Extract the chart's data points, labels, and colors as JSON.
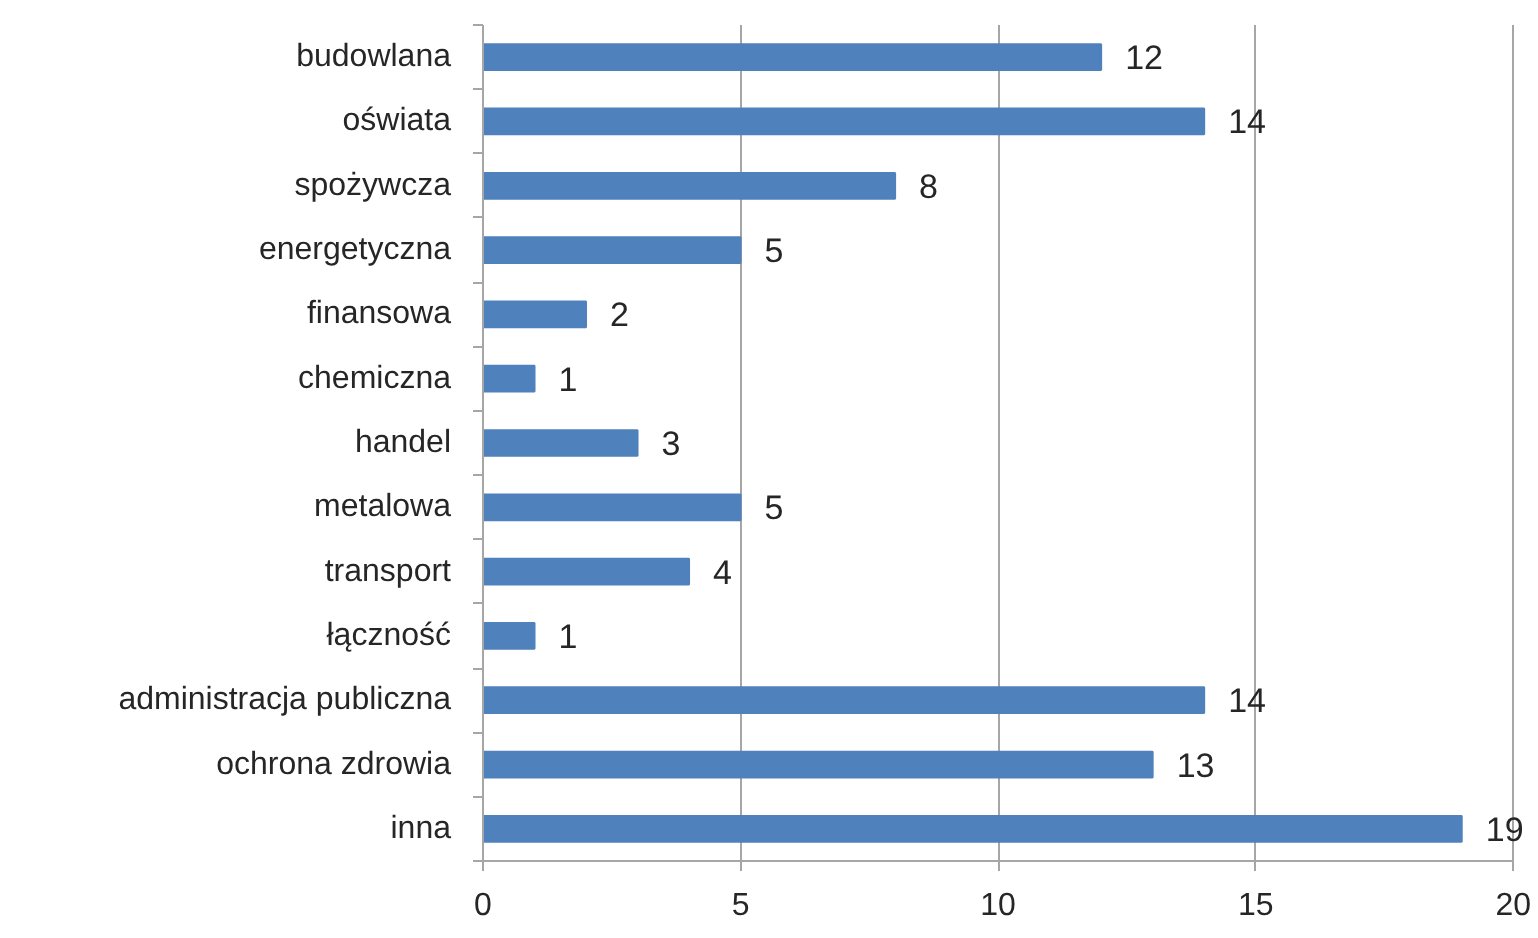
{
  "chart_data": {
    "type": "bar",
    "orientation": "horizontal",
    "categories": [
      "budowlana",
      "oświata",
      "spożywcza",
      "energetyczna",
      "finansowa",
      "chemiczna",
      "handel",
      "metalowa",
      "transport",
      "łączność",
      "administracja publiczna",
      "ochrona zdrowia",
      "inna"
    ],
    "values": [
      12,
      14,
      8,
      5,
      2,
      1,
      3,
      5,
      4,
      1,
      14,
      13,
      19
    ],
    "color": "#4f81bd",
    "xlim": [
      0,
      20
    ],
    "xticks": [
      0,
      5,
      10,
      15,
      20
    ],
    "grid": "x",
    "data_labels": true
  }
}
